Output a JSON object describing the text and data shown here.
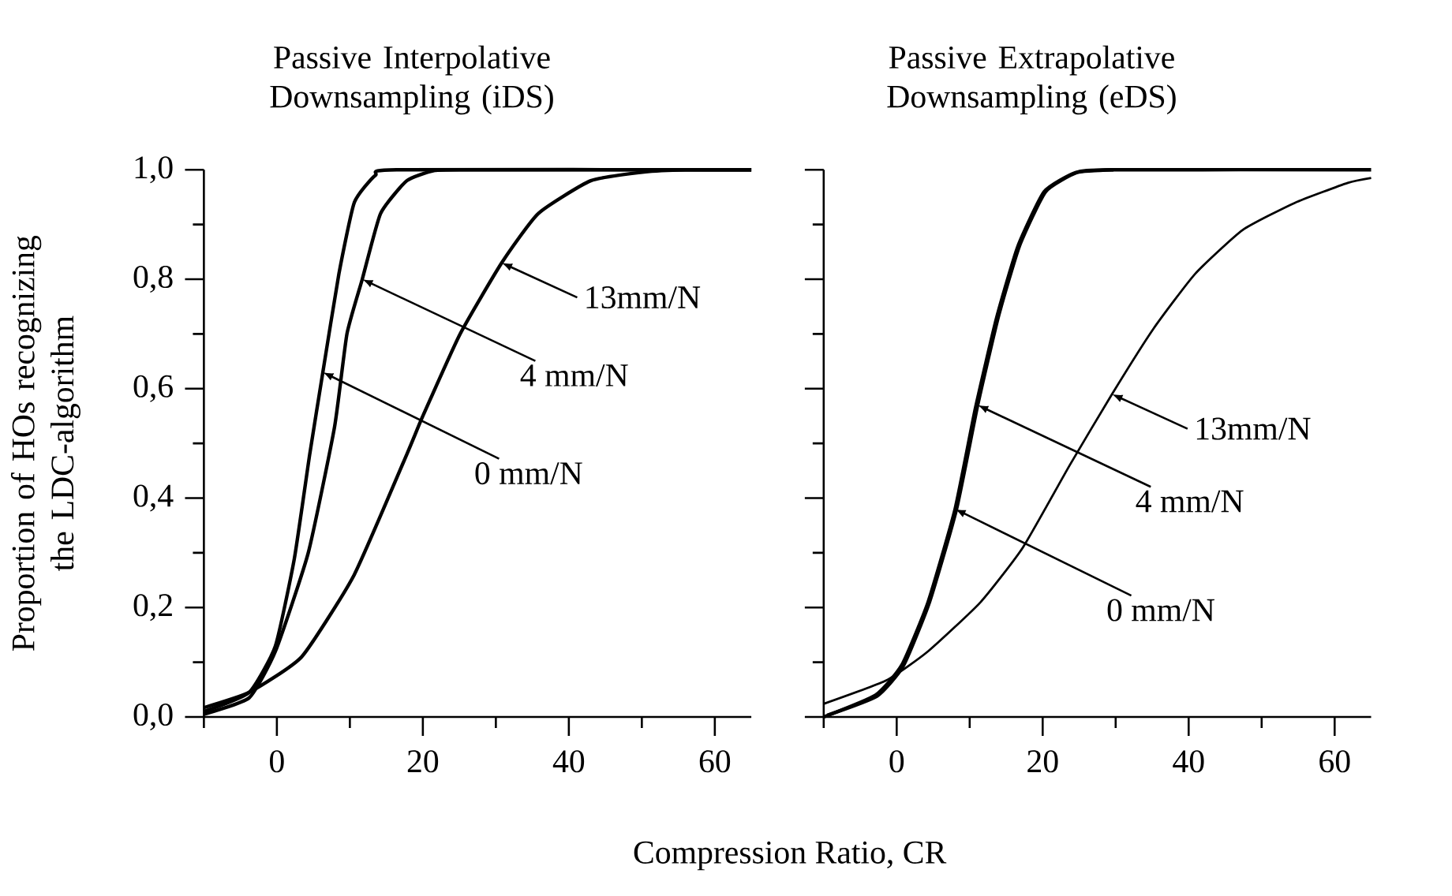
{
  "chart_data": [
    {
      "type": "line",
      "title": "Passive Interpolative Downsampling (iDS)",
      "ylabel": "Proportion of HOs recognizing the LDC-algorithm",
      "xlabel": "Compression Ratio, CR",
      "xlim": [
        -10,
        65
      ],
      "ylim": [
        0,
        1
      ],
      "xticks": [
        {
          "value": -10,
          "label": null
        },
        0,
        {
          "value": 10,
          "label": null
        },
        20,
        {
          "value": 30,
          "label": null
        },
        40,
        {
          "value": 50,
          "label": null
        },
        60
      ],
      "yticks": [
        {
          "value": 0,
          "label": "0,0"
        },
        {
          "value": 0.1,
          "label": null
        },
        {
          "value": 0.2,
          "label": "0,2"
        },
        {
          "value": 0.3,
          "label": null
        },
        {
          "value": 0.4,
          "label": "0,4"
        },
        {
          "value": 0.5,
          "label": null
        },
        {
          "value": 0.6,
          "label": "0,6"
        },
        {
          "value": 0.7,
          "label": null
        },
        {
          "value": 0.8,
          "label": "0,8"
        },
        {
          "value": 0.9,
          "label": null
        },
        {
          "value": 1,
          "label": "1,0"
        }
      ],
      "series": [
        {
          "color": "#000000",
          "x": [
            -10,
            -3.8,
            -0.2,
            2.4,
            4.5,
            6.3,
            8.5,
            10.6,
            13.5,
            16.4,
            65
          ],
          "values": [
            0.01,
            0.045,
            0.13,
            0.29,
            0.48,
            0.63,
            0.81,
            0.94,
            0.99,
            1.0,
            1.0
          ]
        },
        {
          "color": "#000000",
          "x": [
            -10,
            -3.8,
            -0.2,
            4.3,
            7.9,
            9.6,
            11.7,
            14.2,
            17.8,
            21.4,
            25,
            65
          ],
          "values": [
            0.005,
            0.035,
            0.12,
            0.3,
            0.53,
            0.7,
            0.8,
            0.92,
            0.98,
            0.998,
            1.0,
            1.0
          ]
        },
        {
          "color": "#000000",
          "x": [
            -10,
            -3.8,
            3.4,
            10.6,
            17.8,
            20,
            25.1,
            30.8,
            35.8,
            43,
            50.3,
            56,
            65
          ],
          "values": [
            0.017,
            0.045,
            0.11,
            0.26,
            0.48,
            0.55,
            0.7,
            0.83,
            0.92,
            0.98,
            0.996,
            1.0,
            1.0
          ]
        }
      ],
      "annotations": [
        {
          "text": "0 mm/N",
          "x": 6.3,
          "y": 0.63
        },
        {
          "text": "4 mm/N",
          "x": 11.7,
          "y": 0.8
        },
        {
          "text": "13mm/N",
          "x": 30.8,
          "y": 0.83
        }
      ]
    },
    {
      "type": "line",
      "title": "Passive Extrapolative Downsampling (eDS)",
      "tick_labels": "x",
      "xlim": [
        -10,
        65
      ],
      "ylim": [
        0,
        1
      ],
      "xticks": [
        {
          "value": -10,
          "label": null
        },
        0,
        {
          "value": 10,
          "label": null
        },
        20,
        {
          "value": 30,
          "label": null
        },
        40,
        {
          "value": 50,
          "label": null
        },
        60
      ],
      "yticks": [
        0,
        {
          "value": 0.1,
          "label": null
        },
        0.2,
        {
          "value": 0.3,
          "label": null
        },
        0.4,
        {
          "value": 0.5,
          "label": null
        },
        0.6,
        {
          "value": 0.7,
          "label": null
        },
        0.8,
        {
          "value": 0.9,
          "label": null
        },
        1
      ],
      "series": [
        {
          "color": "#000000",
          "x": [
            -10,
            -2.9,
            0.7,
            4.3,
            8.0,
            10.8,
            13.7,
            16.6,
            20.2,
            24.5,
            29.5,
            65
          ],
          "values": [
            0.0,
            0.04,
            0.095,
            0.21,
            0.38,
            0.565,
            0.73,
            0.86,
            0.96,
            0.995,
            1.0,
            1.0
          ]
        },
        {
          "color": "#000000",
          "x": [
            -9.5,
            -2.7,
            0.9,
            4.5,
            8.2,
            11.1,
            13.9,
            16.8,
            20.4,
            24.7,
            29.7
          ],
          "values": [
            0.003,
            0.038,
            0.093,
            0.21,
            0.38,
            0.57,
            0.73,
            0.86,
            0.96,
            0.995,
            1.0
          ]
        },
        {
          "color": "#000000",
          "x": [
            -10,
            -1.4,
            4.3,
            11.5,
            17.3,
            23.7,
            29.5,
            35.2,
            40.9,
            47.4,
            54.6,
            61.8,
            65
          ],
          "values": [
            0.024,
            0.067,
            0.12,
            0.21,
            0.31,
            0.46,
            0.59,
            0.71,
            0.81,
            0.89,
            0.94,
            0.976,
            0.985
          ]
        }
      ],
      "annotations": [
        {
          "text": "0 mm/N",
          "x": 8.0,
          "y": 0.38
        },
        {
          "text": "4 mm/N",
          "x": 11.1,
          "y": 0.57
        },
        {
          "text": "13mm/N",
          "x": 29.5,
          "y": 0.59
        }
      ]
    }
  ]
}
